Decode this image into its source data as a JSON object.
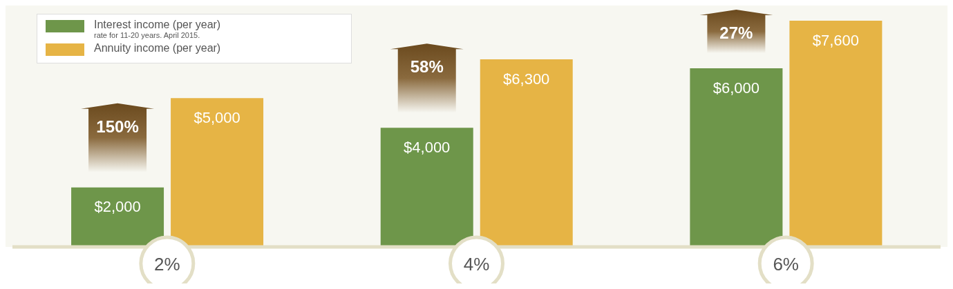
{
  "chart_data": {
    "type": "bar",
    "categories": [
      "2%",
      "4%",
      "6%"
    ],
    "series": [
      {
        "name": "Interest income (per year)",
        "color": "#6e964a",
        "values": [
          2000,
          4000,
          6000
        ],
        "value_labels": [
          "$2,000",
          "$4,000",
          "$6,000"
        ]
      },
      {
        "name": "Annuity income (per year)",
        "color": "#e6b445",
        "values": [
          5000,
          6300,
          7600
        ],
        "value_labels": [
          "$5,000",
          "$6,300",
          "$7,600"
        ]
      }
    ],
    "legend": "top left",
    "annotations": [
      "rate for 11-20 years. April 2015.",
      "150%",
      "58%",
      "27%"
    ]
  }
}
